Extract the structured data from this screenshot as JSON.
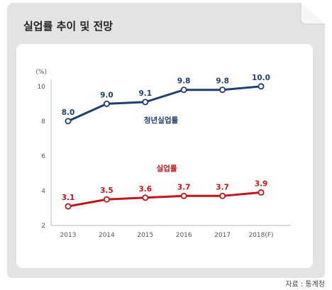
{
  "header": {
    "title": "실업률 추이 및 전망"
  },
  "source": "자료 : 통계청",
  "colors": {
    "frame": "#e3e3e3",
    "plot_bg": "#ffffff",
    "series_youth": "#1f3f6e",
    "series_total": "#c0161b",
    "axis_text": "#555555"
  },
  "chart_data": {
    "type": "line",
    "unit_label": "(%)",
    "categories": [
      "2013",
      "2014",
      "2015",
      "2016",
      "2017",
      "2018(F)"
    ],
    "yticks": [
      2,
      4,
      6,
      8,
      10
    ],
    "ylim": [
      2,
      10.4
    ],
    "grid": false,
    "series": [
      {
        "name": "청년실업률",
        "values": [
          8.0,
          9.0,
          9.1,
          9.8,
          9.8,
          10.0
        ],
        "value_labels": [
          "8.0",
          "9.0",
          "9.1",
          "9.8",
          "9.8",
          "10.0"
        ]
      },
      {
        "name": "실업률",
        "values": [
          3.1,
          3.5,
          3.6,
          3.7,
          3.7,
          3.9
        ],
        "value_labels": [
          "3.1",
          "3.5",
          "3.6",
          "3.7",
          "3.7",
          "3.9"
        ]
      }
    ]
  }
}
